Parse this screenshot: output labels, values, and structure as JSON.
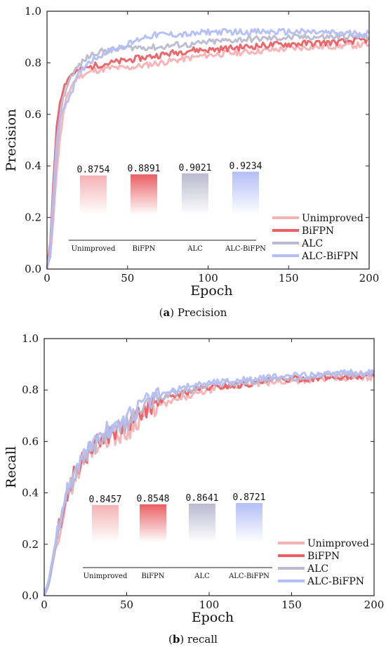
{
  "colors": {
    "Unimproved": "#f4b2b4",
    "BiFPN": "#ea5f64",
    "ALC": "#bab9cf",
    "ALC-BiFPN": "#b3bef6"
  },
  "panels": [
    {
      "caption": {
        "letter": "a",
        "text": "Precision"
      },
      "inset": {
        "values": [
          "0.8754",
          "0.8891",
          "0.9021",
          "0.9234"
        ]
      }
    },
    {
      "caption": {
        "letter": "b",
        "text": "recall"
      },
      "inset": {
        "values": [
          "0.8457",
          "0.8548",
          "0.8641",
          "0.8721"
        ]
      }
    }
  ],
  "chart_data": [
    {
      "type": "line",
      "xlabel": "Epoch",
      "ylabel": "Precision",
      "xlim": [
        0,
        200
      ],
      "ylim": [
        0,
        1.0
      ],
      "xticks": [
        0,
        50,
        100,
        150,
        200
      ],
      "yticks": [
        0.0,
        0.2,
        0.4,
        0.6,
        0.8,
        1.0
      ],
      "legend": "bottom-right",
      "series": [
        {
          "name": "Unimproved",
          "x": [
            0,
            2,
            4,
            6,
            8,
            10,
            13,
            16,
            20,
            25,
            30,
            40,
            50,
            60,
            70,
            80,
            90,
            100,
            120,
            140,
            160,
            180,
            200
          ],
          "values": [
            0.0,
            0.05,
            0.2,
            0.38,
            0.5,
            0.6,
            0.68,
            0.72,
            0.75,
            0.76,
            0.77,
            0.78,
            0.78,
            0.79,
            0.8,
            0.81,
            0.82,
            0.83,
            0.84,
            0.85,
            0.86,
            0.865,
            0.87
          ]
        },
        {
          "name": "BiFPN",
          "x": [
            0,
            2,
            4,
            6,
            8,
            10,
            13,
            16,
            20,
            25,
            30,
            40,
            50,
            60,
            70,
            80,
            90,
            100,
            120,
            140,
            160,
            180,
            200
          ],
          "values": [
            0.0,
            0.1,
            0.35,
            0.55,
            0.65,
            0.7,
            0.74,
            0.76,
            0.77,
            0.78,
            0.79,
            0.8,
            0.81,
            0.82,
            0.83,
            0.84,
            0.85,
            0.85,
            0.86,
            0.87,
            0.875,
            0.88,
            0.89
          ]
        },
        {
          "name": "ALC",
          "x": [
            0,
            2,
            4,
            6,
            8,
            10,
            13,
            16,
            20,
            25,
            30,
            40,
            50,
            60,
            70,
            80,
            90,
            100,
            120,
            140,
            160,
            180,
            200
          ],
          "values": [
            0.0,
            0.05,
            0.25,
            0.45,
            0.58,
            0.66,
            0.72,
            0.76,
            0.79,
            0.82,
            0.84,
            0.85,
            0.86,
            0.86,
            0.86,
            0.87,
            0.87,
            0.88,
            0.89,
            0.895,
            0.9,
            0.9,
            0.9
          ]
        },
        {
          "name": "ALC-BiFPN",
          "x": [
            0,
            2,
            4,
            6,
            8,
            10,
            13,
            16,
            20,
            25,
            30,
            40,
            50,
            60,
            70,
            80,
            90,
            100,
            120,
            140,
            160,
            180,
            200
          ],
          "values": [
            0.0,
            0.08,
            0.3,
            0.5,
            0.58,
            0.62,
            0.66,
            0.7,
            0.76,
            0.8,
            0.82,
            0.85,
            0.87,
            0.9,
            0.91,
            0.91,
            0.91,
            0.92,
            0.92,
            0.92,
            0.92,
            0.915,
            0.915
          ]
        }
      ],
      "inset": {
        "type": "bar",
        "categories": [
          "Unimproved",
          "BiFPN",
          "ALC",
          "ALC-BiFPN"
        ],
        "values": [
          0.8754,
          0.8891,
          0.9021,
          0.9234
        ]
      }
    },
    {
      "type": "line",
      "xlabel": "Epoch",
      "ylabel": "Recall",
      "xlim": [
        0,
        200
      ],
      "ylim": [
        0,
        1.0
      ],
      "xticks": [
        0,
        50,
        100,
        150,
        200
      ],
      "yticks": [
        0.0,
        0.2,
        0.4,
        0.6,
        0.8,
        1.0
      ],
      "legend": "bottom-right",
      "series": [
        {
          "name": "Unimproved",
          "x": [
            0,
            3,
            6,
            10,
            14,
            18,
            22,
            26,
            30,
            35,
            40,
            45,
            50,
            55,
            60,
            65,
            70,
            80,
            90,
            100,
            120,
            140,
            160,
            180,
            200
          ],
          "values": [
            0.0,
            0.05,
            0.15,
            0.28,
            0.38,
            0.45,
            0.5,
            0.54,
            0.58,
            0.6,
            0.62,
            0.62,
            0.63,
            0.67,
            0.7,
            0.72,
            0.74,
            0.76,
            0.78,
            0.8,
            0.82,
            0.83,
            0.84,
            0.845,
            0.85
          ]
        },
        {
          "name": "BiFPN",
          "x": [
            0,
            3,
            6,
            10,
            14,
            18,
            22,
            26,
            30,
            35,
            40,
            45,
            50,
            55,
            60,
            65,
            70,
            80,
            90,
            100,
            120,
            140,
            160,
            180,
            200
          ],
          "values": [
            0.0,
            0.06,
            0.17,
            0.3,
            0.4,
            0.47,
            0.52,
            0.55,
            0.58,
            0.61,
            0.63,
            0.65,
            0.66,
            0.69,
            0.72,
            0.74,
            0.76,
            0.78,
            0.8,
            0.81,
            0.82,
            0.84,
            0.845,
            0.85,
            0.855
          ]
        },
        {
          "name": "ALC",
          "x": [
            0,
            3,
            6,
            10,
            14,
            18,
            22,
            26,
            30,
            35,
            40,
            45,
            50,
            55,
            60,
            65,
            70,
            80,
            90,
            100,
            120,
            140,
            160,
            180,
            200
          ],
          "values": [
            0.0,
            0.05,
            0.16,
            0.29,
            0.39,
            0.46,
            0.51,
            0.55,
            0.58,
            0.61,
            0.63,
            0.65,
            0.67,
            0.7,
            0.73,
            0.75,
            0.77,
            0.79,
            0.8,
            0.82,
            0.83,
            0.84,
            0.85,
            0.86,
            0.865
          ]
        },
        {
          "name": "ALC-BiFPN",
          "x": [
            0,
            3,
            6,
            10,
            14,
            18,
            22,
            26,
            30,
            35,
            40,
            45,
            50,
            55,
            60,
            65,
            70,
            80,
            90,
            100,
            120,
            140,
            160,
            180,
            200
          ],
          "values": [
            0.0,
            0.07,
            0.18,
            0.31,
            0.41,
            0.48,
            0.53,
            0.57,
            0.6,
            0.63,
            0.65,
            0.67,
            0.69,
            0.72,
            0.75,
            0.77,
            0.78,
            0.8,
            0.82,
            0.83,
            0.84,
            0.85,
            0.86,
            0.865,
            0.87
          ]
        }
      ],
      "inset": {
        "type": "bar",
        "categories": [
          "Unimproved",
          "BiFPN",
          "ALC",
          "ALC-BiFPN"
        ],
        "values": [
          0.8457,
          0.8548,
          0.8641,
          0.8721
        ]
      }
    }
  ]
}
